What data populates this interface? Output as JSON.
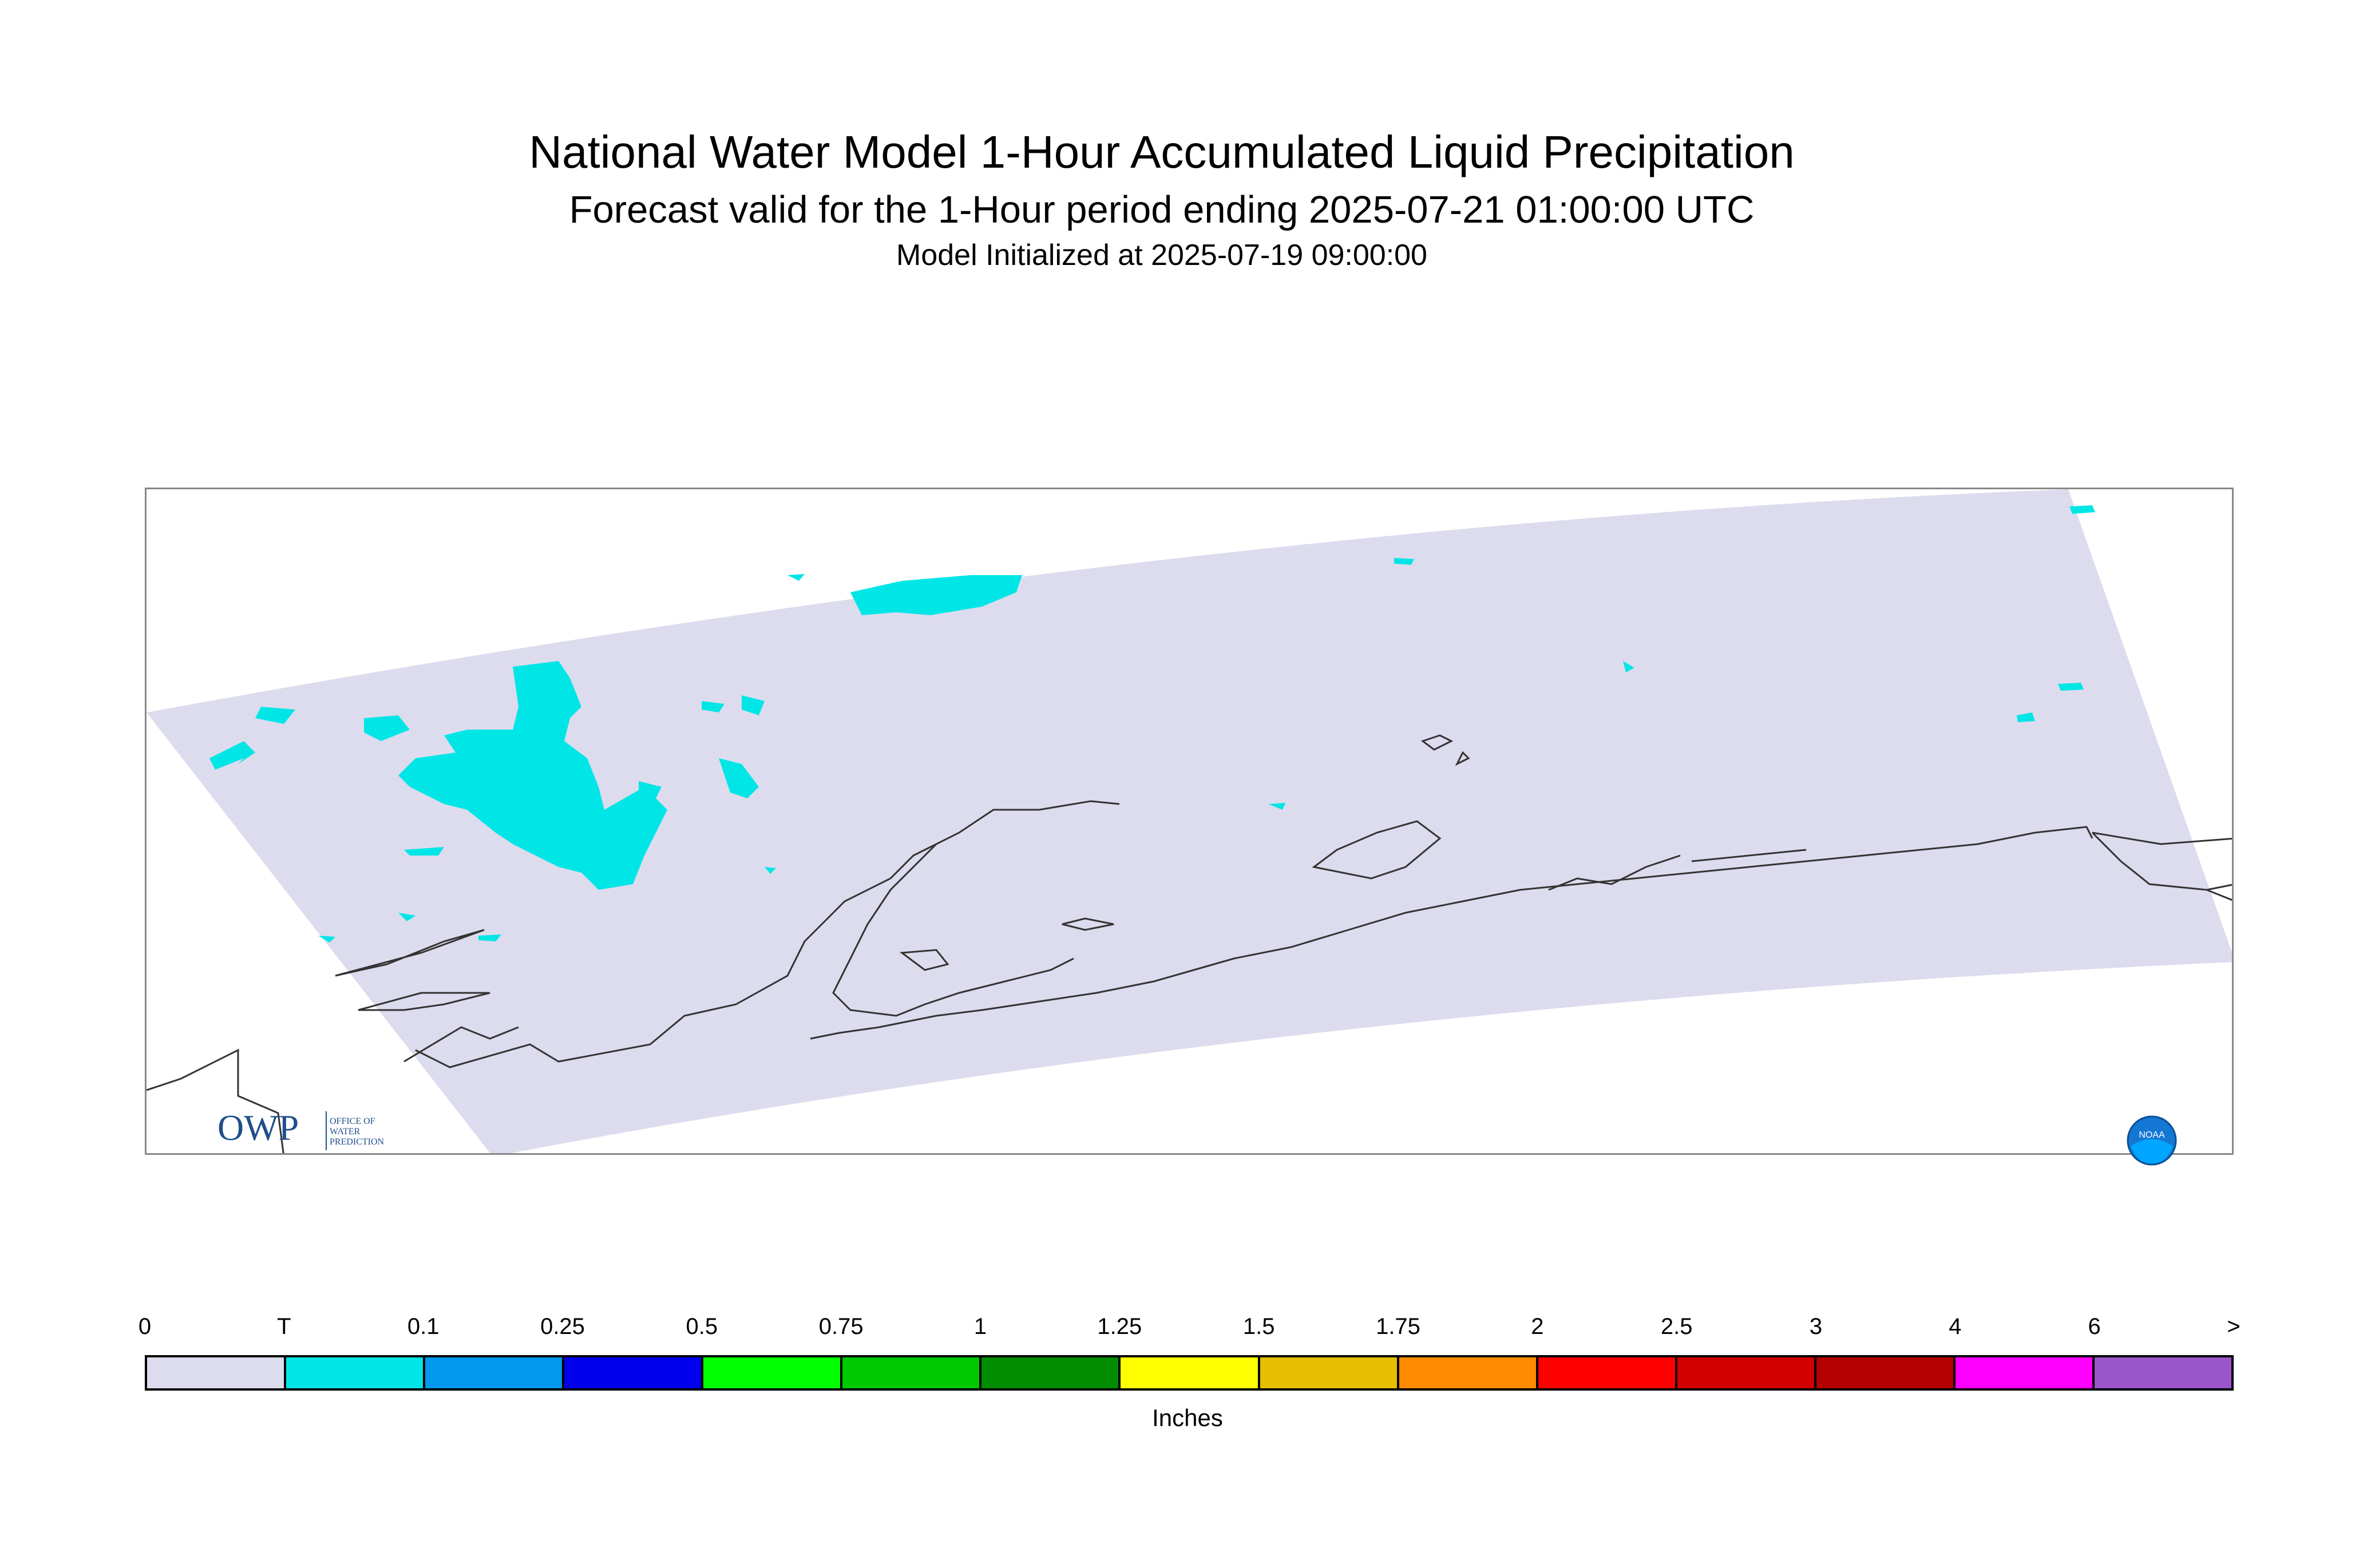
{
  "title": {
    "main": "National Water Model 1-Hour Accumulated Liquid Precipitation",
    "sub": "Forecast valid for the 1-Hour period ending 2025-07-21 01:00:00 UTC",
    "init": "Model Initialized at 2025-07-19 09:00:00"
  },
  "colors": {
    "domain_fill": "#dcdcee",
    "trace_precip": "#00e6e6",
    "coastline": "#333333"
  },
  "logos": {
    "owp_text": "OWP",
    "owp_small": "OFFICE OF WATER PREDICTION",
    "noaa_text": "NOAA"
  },
  "legend": {
    "units": "Inches",
    "labels": [
      "0",
      "T",
      "0.1",
      "0.25",
      "0.5",
      "0.75",
      "1",
      "1.25",
      "1.5",
      "1.75",
      "2",
      "2.5",
      "3",
      "4",
      "6",
      ">"
    ],
    "colors": [
      "#dcdcee",
      "#00e6e6",
      "#0099ee",
      "#0000ee",
      "#00ff00",
      "#00c800",
      "#008c00",
      "#ffff00",
      "#e6bf00",
      "#ff8c00",
      "#ff0000",
      "#d20000",
      "#b40000",
      "#ff00ff",
      "#9955c9"
    ]
  }
}
